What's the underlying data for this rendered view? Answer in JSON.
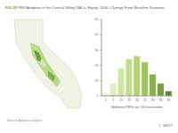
{
  "chart_data": {
    "type": "bar",
    "title": "FIG 29 PEV Adoption in the Central Valley DACs, Equity, 2030, Change From Baseline Scenario",
    "categories": [
      "0",
      "5",
      "10",
      "15",
      "20",
      "25",
      "30",
      "35",
      "40"
    ],
    "values": [
      2,
      8,
      18,
      24,
      26,
      22,
      14,
      8,
      3
    ],
    "colors": [
      "#eef5d8",
      "#e0eec0",
      "#d0e6a4",
      "#c0dd8a",
      "#b0d472",
      "#9cc65c",
      "#86b44a",
      "#72a03e",
      "#5e8a34"
    ],
    "x_label": "Additional PEVs per 100 households",
    "ylim": [
      0,
      50
    ],
    "yticks": [
      0,
      10,
      20,
      30,
      40,
      50
    ],
    "grid": false,
    "annotations": [
      "Source: Authors' analysis",
      "NEXT"
    ]
  }
}
